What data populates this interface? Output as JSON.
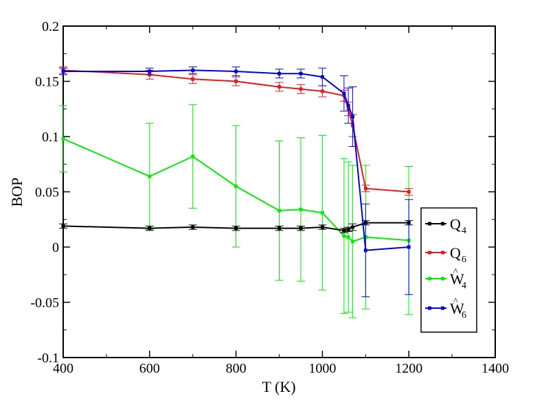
{
  "chart_data": {
    "type": "line",
    "title": "",
    "xlabel": "T (K)",
    "ylabel": "BOP",
    "xlim": [
      400,
      1400
    ],
    "ylim": [
      -0.1,
      0.2
    ],
    "x_ticks": [
      "400",
      "600",
      "800",
      "1000",
      "1200",
      "1400"
    ],
    "y_ticks": [
      "-0.1",
      "-0.05",
      "0",
      "0.05",
      "0.1",
      "0.15",
      "0.2"
    ],
    "x_tick_values": [
      400,
      600,
      800,
      1000,
      1200,
      1400
    ],
    "y_tick_values": [
      -0.1,
      -0.05,
      0,
      0.05,
      0.1,
      0.15,
      0.2
    ],
    "legend_position": "right",
    "series": [
      {
        "name": "Q4",
        "legend_base": "Q",
        "legend_sub": "4",
        "legend_hat": "",
        "color": "#000000",
        "x": [
          400,
          600,
          700,
          800,
          900,
          950,
          1000,
          1050,
          1060,
          1070,
          1100,
          1200
        ],
        "y": [
          0.019,
          0.017,
          0.018,
          0.017,
          0.017,
          0.017,
          0.018,
          0.015,
          0.016,
          0.018,
          0.022,
          0.022
        ],
        "err": [
          0.002,
          0.002,
          0.002,
          0.002,
          0.002,
          0.002,
          0.002,
          0.002,
          0.002,
          0.003,
          0.002,
          0.002
        ]
      },
      {
        "name": "Q6",
        "legend_base": "Q",
        "legend_sub": "6",
        "legend_hat": "",
        "color": "#e41a1c",
        "x": [
          400,
          600,
          700,
          800,
          900,
          950,
          1000,
          1050,
          1060,
          1070,
          1100,
          1200
        ],
        "y": [
          0.16,
          0.156,
          0.152,
          0.15,
          0.145,
          0.143,
          0.141,
          0.137,
          0.125,
          0.11,
          0.053,
          0.05
        ],
        "err": [
          0.003,
          0.004,
          0.004,
          0.004,
          0.004,
          0.004,
          0.005,
          0.005,
          0.006,
          0.01,
          0.003,
          0.003
        ]
      },
      {
        "name": "W4",
        "legend_base": "W",
        "legend_sub": "4",
        "legend_hat": "^",
        "color": "#00ee00",
        "x": [
          400,
          600,
          700,
          800,
          900,
          950,
          1000,
          1050,
          1060,
          1070,
          1100,
          1200
        ],
        "y": [
          0.098,
          0.064,
          0.082,
          0.055,
          0.033,
          0.034,
          0.031,
          0.01,
          0.009,
          0.005,
          0.009,
          0.006
        ],
        "err": [
          0.03,
          0.048,
          0.047,
          0.055,
          0.063,
          0.065,
          0.07,
          0.07,
          0.068,
          0.069,
          0.065,
          0.067
        ]
      },
      {
        "name": "W6",
        "legend_base": "W",
        "legend_sub": "6",
        "legend_hat": "^",
        "color": "#0000dd",
        "x": [
          400,
          600,
          700,
          800,
          900,
          950,
          1000,
          1050,
          1060,
          1070,
          1100,
          1200
        ],
        "y": [
          0.159,
          0.159,
          0.16,
          0.159,
          0.157,
          0.157,
          0.154,
          0.139,
          0.128,
          0.118,
          -0.003,
          0.0
        ],
        "err": [
          0.003,
          0.003,
          0.003,
          0.004,
          0.004,
          0.004,
          0.008,
          0.016,
          0.016,
          0.027,
          0.042,
          0.043
        ]
      }
    ]
  }
}
